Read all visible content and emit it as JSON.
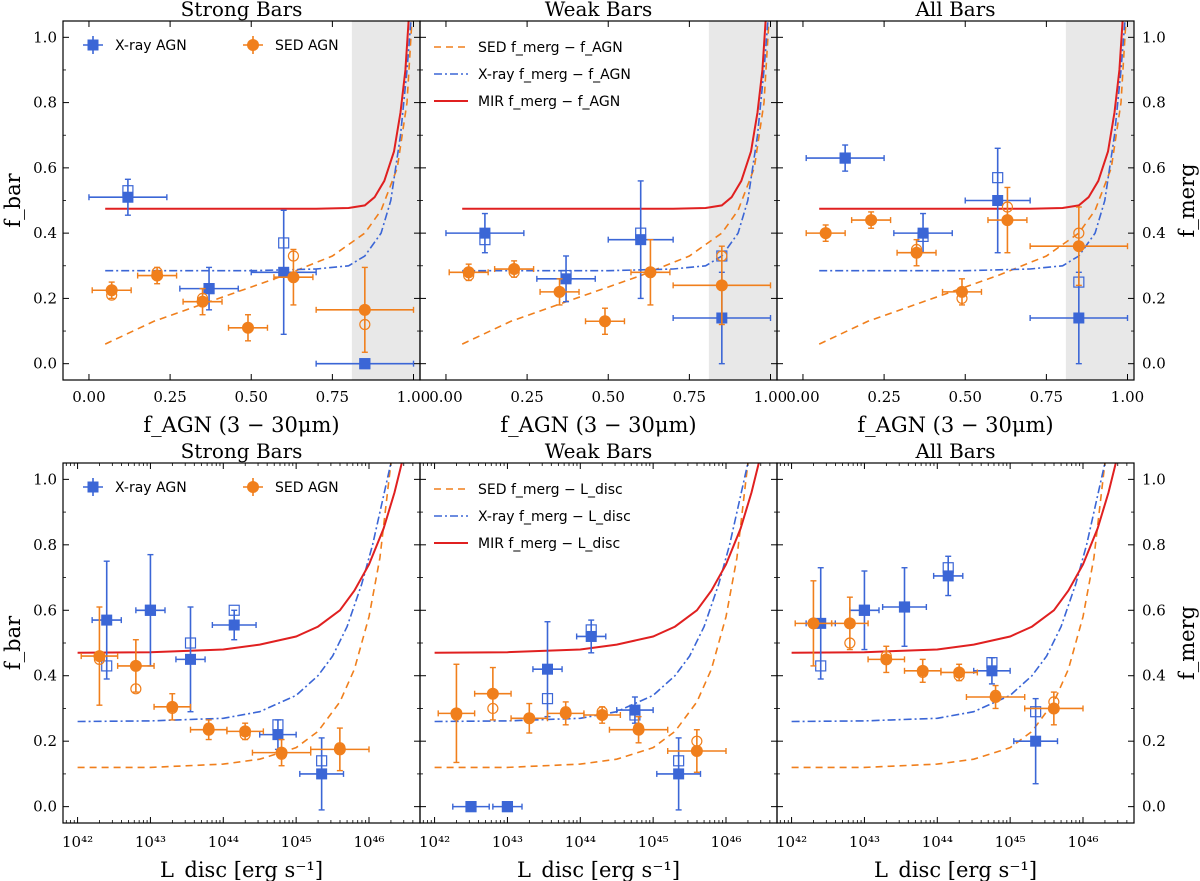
{
  "colors": {
    "xray": "#3b66d6",
    "sed": "#f07f1c",
    "mir": "#e02020",
    "shade": "#e8e8e8"
  },
  "legend": {
    "xray": "X-ray AGN",
    "sed": "SED AGN",
    "top_sed": "SED f_merg − f_AGN",
    "top_xray": "X-ray f_merg − f_AGN",
    "top_mir": "MIR f_merg − f_AGN",
    "bot_sed": "SED f_merg − L_disc",
    "bot_xray": "X-ray f_merg − L_disc",
    "bot_mir": "MIR f_merg − L_disc"
  },
  "axes": {
    "top_xlabel": "f_AGN (3 − 30μm)",
    "bot_xlabel": "L_disc [erg s⁻¹]",
    "ylabel_left": "f_bar",
    "ylabel_right": "f_merg",
    "top_xticks": [
      "0.00",
      "0.25",
      "0.50",
      "0.75",
      "1.00"
    ],
    "bot_xticks": [
      "10⁴²",
      "10⁴³",
      "10⁴⁴",
      "10⁴⁵",
      "10⁴⁶"
    ],
    "yticks": [
      "0.0",
      "0.2",
      "0.4",
      "0.6",
      "0.8",
      "1.0"
    ],
    "top_xlim": [
      -0.08,
      1.02
    ],
    "bot_xlim": [
      41.8,
      46.7
    ],
    "ylim": [
      -0.05,
      1.05
    ]
  },
  "chart_data": [
    {
      "type": "scatter",
      "title": "Strong Bars",
      "row": "top",
      "shade_from": 0.81,
      "series": [
        {
          "name": "X-ray AGN",
          "x": [
            0.12,
            0.37,
            0.6,
            0.85
          ],
          "y": [
            0.51,
            0.23,
            0.28,
            0.0
          ],
          "xerr": [
            0.12,
            0.09,
            0.1,
            0.15
          ],
          "yerr": [
            0.055,
            0.065,
            0.19,
            0.0
          ],
          "open_y": [
            0.53,
            0.23,
            0.37,
            0.0
          ]
        },
        {
          "name": "SED AGN",
          "x": [
            0.07,
            0.21,
            0.35,
            0.49,
            0.63,
            0.85
          ],
          "y": [
            0.225,
            0.27,
            0.19,
            0.11,
            0.265,
            0.165
          ],
          "xerr": [
            0.06,
            0.06,
            0.06,
            0.06,
            0.06,
            0.15
          ],
          "yerr": [
            0.025,
            0.025,
            0.04,
            0.04,
            0.085,
            0.13
          ],
          "open_y": [
            0.21,
            0.28,
            0.2,
            0.11,
            0.33,
            0.12
          ]
        }
      ],
      "curves": {
        "sed": {
          "x": [
            0.05,
            0.2,
            0.4,
            0.6,
            0.75,
            0.85,
            0.9,
            0.95,
            0.98,
            0.995
          ],
          "y": [
            0.06,
            0.13,
            0.2,
            0.27,
            0.33,
            0.4,
            0.47,
            0.6,
            0.8,
            1.05
          ]
        },
        "xray": {
          "x": [
            0.05,
            0.5,
            0.7,
            0.8,
            0.85,
            0.9,
            0.93,
            0.96,
            0.98,
            0.992
          ],
          "y": [
            0.285,
            0.285,
            0.29,
            0.3,
            0.33,
            0.4,
            0.5,
            0.7,
            0.9,
            1.05
          ]
        },
        "mir": {
          "x": [
            0.05,
            0.7,
            0.8,
            0.85,
            0.88,
            0.91,
            0.94,
            0.96,
            0.975,
            0.985
          ],
          "y": [
            0.475,
            0.475,
            0.477,
            0.485,
            0.51,
            0.56,
            0.65,
            0.77,
            0.9,
            1.05
          ]
        }
      }
    },
    {
      "type": "scatter",
      "title": "Weak Bars",
      "row": "top",
      "shade_from": 0.81,
      "series": [
        {
          "name": "X-ray AGN",
          "x": [
            0.12,
            0.37,
            0.6,
            0.85
          ],
          "y": [
            0.4,
            0.26,
            0.38,
            0.14
          ],
          "xerr": [
            0.12,
            0.09,
            0.1,
            0.15
          ],
          "yerr": [
            0.06,
            0.07,
            0.18,
            0.14
          ],
          "open_y": [
            0.38,
            0.27,
            0.4,
            0.33
          ]
        },
        {
          "name": "SED AGN",
          "x": [
            0.07,
            0.21,
            0.35,
            0.49,
            0.63,
            0.85
          ],
          "y": [
            0.28,
            0.29,
            0.22,
            0.13,
            0.28,
            0.24
          ],
          "xerr": [
            0.06,
            0.06,
            0.06,
            0.06,
            0.06,
            0.15
          ],
          "yerr": [
            0.025,
            0.025,
            0.04,
            0.04,
            0.1,
            0.12
          ],
          "open_y": [
            0.27,
            0.28,
            0.22,
            0.13,
            0.28,
            0.33
          ]
        }
      ],
      "curves": {
        "sed": {
          "x": [
            0.05,
            0.2,
            0.4,
            0.6,
            0.75,
            0.85,
            0.9,
            0.95,
            0.98,
            0.995
          ],
          "y": [
            0.06,
            0.13,
            0.2,
            0.27,
            0.33,
            0.4,
            0.47,
            0.6,
            0.8,
            1.05
          ]
        },
        "xray": {
          "x": [
            0.05,
            0.5,
            0.7,
            0.8,
            0.85,
            0.9,
            0.93,
            0.96,
            0.98,
            0.992
          ],
          "y": [
            0.285,
            0.285,
            0.29,
            0.3,
            0.33,
            0.4,
            0.5,
            0.7,
            0.9,
            1.05
          ]
        },
        "mir": {
          "x": [
            0.05,
            0.7,
            0.8,
            0.85,
            0.88,
            0.91,
            0.94,
            0.96,
            0.975,
            0.985
          ],
          "y": [
            0.475,
            0.475,
            0.477,
            0.485,
            0.51,
            0.56,
            0.65,
            0.77,
            0.9,
            1.05
          ]
        }
      }
    },
    {
      "type": "scatter",
      "title": "All Bars",
      "row": "top",
      "shade_from": 0.81,
      "series": [
        {
          "name": "X-ray AGN",
          "x": [
            0.13,
            0.37,
            0.6,
            0.85
          ],
          "y": [
            0.63,
            0.4,
            0.5,
            0.14
          ],
          "xerr": [
            0.12,
            0.09,
            0.1,
            0.15
          ],
          "yerr": [
            0.04,
            0.06,
            0.16,
            0.14
          ],
          "open_y": [
            0.63,
            0.39,
            0.57,
            0.25
          ]
        },
        {
          "name": "SED AGN",
          "x": [
            0.07,
            0.21,
            0.35,
            0.49,
            0.63,
            0.85
          ],
          "y": [
            0.4,
            0.44,
            0.34,
            0.22,
            0.44,
            0.36
          ],
          "xerr": [
            0.06,
            0.06,
            0.06,
            0.06,
            0.06,
            0.15
          ],
          "yerr": [
            0.025,
            0.025,
            0.04,
            0.04,
            0.1,
            0.12
          ],
          "open_y": [
            0.4,
            0.44,
            0.35,
            0.2,
            0.48,
            0.4
          ]
        }
      ],
      "curves": {
        "sed": {
          "x": [
            0.05,
            0.2,
            0.4,
            0.6,
            0.75,
            0.85,
            0.9,
            0.95,
            0.98,
            0.995
          ],
          "y": [
            0.06,
            0.13,
            0.2,
            0.27,
            0.33,
            0.4,
            0.47,
            0.6,
            0.8,
            1.05
          ]
        },
        "xray": {
          "x": [
            0.05,
            0.5,
            0.7,
            0.8,
            0.85,
            0.9,
            0.93,
            0.96,
            0.98,
            0.992
          ],
          "y": [
            0.285,
            0.285,
            0.29,
            0.3,
            0.33,
            0.4,
            0.5,
            0.7,
            0.9,
            1.05
          ]
        },
        "mir": {
          "x": [
            0.05,
            0.7,
            0.8,
            0.85,
            0.88,
            0.91,
            0.94,
            0.96,
            0.975,
            0.985
          ],
          "y": [
            0.475,
            0.475,
            0.477,
            0.485,
            0.51,
            0.56,
            0.65,
            0.77,
            0.9,
            1.05
          ]
        }
      }
    },
    {
      "type": "scatter",
      "title": "Strong Bars",
      "row": "bottom",
      "series": [
        {
          "name": "X-ray AGN",
          "x": [
            42.4,
            43.0,
            43.55,
            44.15,
            44.75,
            45.35
          ],
          "y": [
            0.57,
            0.6,
            0.45,
            0.555,
            0.22,
            0.1
          ],
          "xerr": [
            0.2,
            0.2,
            0.2,
            0.3,
            0.25,
            0.3
          ],
          "yerr": [
            0.18,
            0.17,
            0.16,
            0.045,
            0.045,
            0.11
          ],
          "open_y": [
            0.43,
            0.6,
            0.5,
            0.6,
            0.25,
            0.14
          ]
        },
        {
          "name": "SED AGN",
          "x": [
            42.3,
            42.8,
            43.3,
            43.8,
            44.3,
            44.8,
            45.6
          ],
          "y": [
            0.46,
            0.43,
            0.305,
            0.235,
            0.23,
            0.165,
            0.175
          ],
          "xerr": [
            0.25,
            0.25,
            0.25,
            0.25,
            0.25,
            0.4,
            0.4
          ],
          "yerr": [
            0.15,
            0.08,
            0.04,
            0.03,
            0.025,
            0.04,
            0.065
          ],
          "open_y": [
            0.45,
            0.36,
            0.3,
            0.24,
            0.22,
            0.16,
            0.18
          ]
        }
      ],
      "curves": {
        "sed": {
          "x": [
            42.0,
            43.0,
            44.0,
            44.5,
            45.0,
            45.3,
            45.6,
            45.8,
            46.0,
            46.15,
            46.3
          ],
          "y": [
            0.12,
            0.12,
            0.13,
            0.145,
            0.18,
            0.23,
            0.32,
            0.42,
            0.58,
            0.76,
            1.05
          ]
        },
        "xray": {
          "x": [
            42.0,
            43.0,
            44.0,
            44.5,
            45.0,
            45.3,
            45.5,
            45.7,
            45.9,
            46.05,
            46.2,
            46.3
          ],
          "y": [
            0.26,
            0.262,
            0.27,
            0.29,
            0.34,
            0.4,
            0.46,
            0.55,
            0.68,
            0.8,
            0.95,
            1.05
          ]
        },
        "mir": {
          "x": [
            42.0,
            43.0,
            44.0,
            44.5,
            45.0,
            45.3,
            45.6,
            45.8,
            46.0,
            46.2,
            46.35,
            46.45
          ],
          "y": [
            0.47,
            0.472,
            0.48,
            0.495,
            0.52,
            0.55,
            0.6,
            0.66,
            0.74,
            0.85,
            0.96,
            1.05
          ]
        }
      }
    },
    {
      "type": "scatter",
      "title": "Weak Bars",
      "row": "bottom",
      "series": [
        {
          "name": "X-ray AGN",
          "x": [
            42.5,
            43.0,
            43.55,
            44.15,
            44.75,
            45.35
          ],
          "y": [
            0.0,
            0.0,
            0.42,
            0.52,
            0.295,
            0.1
          ],
          "xerr": [
            0.25,
            0.2,
            0.2,
            0.2,
            0.25,
            0.3
          ],
          "yerr": [
            0.0,
            0.0,
            0.145,
            0.05,
            0.04,
            0.11
          ],
          "open_y": [
            0.0,
            0.0,
            0.33,
            0.54,
            0.28,
            0.14
          ]
        },
        {
          "name": "SED AGN",
          "x": [
            42.3,
            42.8,
            43.3,
            43.8,
            44.3,
            44.8,
            45.6
          ],
          "y": [
            0.285,
            0.345,
            0.27,
            0.285,
            0.28,
            0.235,
            0.17
          ],
          "xerr": [
            0.25,
            0.25,
            0.25,
            0.25,
            0.25,
            0.4,
            0.4
          ],
          "yerr": [
            0.15,
            0.08,
            0.045,
            0.035,
            0.025,
            0.04,
            0.065
          ],
          "open_y": [
            0.28,
            0.3,
            0.27,
            0.29,
            0.29,
            0.24,
            0.2
          ]
        }
      ],
      "curves": {
        "sed": {
          "x": [
            42.0,
            43.0,
            44.0,
            44.5,
            45.0,
            45.3,
            45.6,
            45.8,
            46.0,
            46.15,
            46.3
          ],
          "y": [
            0.12,
            0.12,
            0.13,
            0.145,
            0.18,
            0.23,
            0.32,
            0.42,
            0.58,
            0.76,
            1.05
          ]
        },
        "xray": {
          "x": [
            42.0,
            43.0,
            44.0,
            44.5,
            45.0,
            45.3,
            45.5,
            45.7,
            45.9,
            46.05,
            46.2,
            46.3
          ],
          "y": [
            0.26,
            0.262,
            0.27,
            0.29,
            0.34,
            0.4,
            0.46,
            0.55,
            0.68,
            0.8,
            0.95,
            1.05
          ]
        },
        "mir": {
          "x": [
            42.0,
            43.0,
            44.0,
            44.5,
            45.0,
            45.3,
            45.6,
            45.8,
            46.0,
            46.2,
            46.35,
            46.45
          ],
          "y": [
            0.47,
            0.472,
            0.48,
            0.495,
            0.52,
            0.55,
            0.6,
            0.66,
            0.74,
            0.85,
            0.96,
            1.05
          ]
        }
      }
    },
    {
      "type": "scatter",
      "title": "All Bars",
      "row": "bottom",
      "series": [
        {
          "name": "X-ray AGN",
          "x": [
            42.4,
            43.0,
            43.55,
            44.15,
            44.75,
            45.35
          ],
          "y": [
            0.56,
            0.6,
            0.61,
            0.705,
            0.415,
            0.2
          ],
          "xerr": [
            0.2,
            0.2,
            0.3,
            0.2,
            0.25,
            0.3
          ],
          "yerr": [
            0.17,
            0.12,
            0.12,
            0.06,
            0.04,
            0.13
          ],
          "open_y": [
            0.43,
            0.6,
            0.61,
            0.73,
            0.44,
            0.29
          ]
        },
        {
          "name": "SED AGN",
          "x": [
            42.3,
            42.8,
            43.3,
            43.8,
            44.3,
            44.8,
            45.6
          ],
          "y": [
            0.56,
            0.56,
            0.45,
            0.415,
            0.41,
            0.335,
            0.3
          ],
          "xerr": [
            0.25,
            0.25,
            0.25,
            0.25,
            0.25,
            0.4,
            0.4
          ],
          "yerr": [
            0.13,
            0.08,
            0.04,
            0.035,
            0.025,
            0.035,
            0.05
          ],
          "open_y": [
            0.56,
            0.5,
            0.46,
            0.41,
            0.4,
            0.34,
            0.32
          ]
        }
      ],
      "curves": {
        "sed": {
          "x": [
            42.0,
            43.0,
            44.0,
            44.5,
            45.0,
            45.3,
            45.6,
            45.8,
            46.0,
            46.15,
            46.3
          ],
          "y": [
            0.12,
            0.12,
            0.13,
            0.145,
            0.18,
            0.23,
            0.32,
            0.42,
            0.58,
            0.76,
            1.05
          ]
        },
        "xray": {
          "x": [
            42.0,
            43.0,
            44.0,
            44.5,
            45.0,
            45.3,
            45.5,
            45.7,
            45.9,
            46.05,
            46.2,
            46.3
          ],
          "y": [
            0.26,
            0.262,
            0.27,
            0.29,
            0.34,
            0.4,
            0.46,
            0.55,
            0.68,
            0.8,
            0.95,
            1.05
          ]
        },
        "mir": {
          "x": [
            42.0,
            43.0,
            44.0,
            44.5,
            45.0,
            45.3,
            45.6,
            45.8,
            46.0,
            46.2,
            46.35,
            46.45
          ],
          "y": [
            0.47,
            0.472,
            0.48,
            0.495,
            0.52,
            0.55,
            0.6,
            0.66,
            0.74,
            0.85,
            0.96,
            1.05
          ]
        }
      }
    }
  ]
}
